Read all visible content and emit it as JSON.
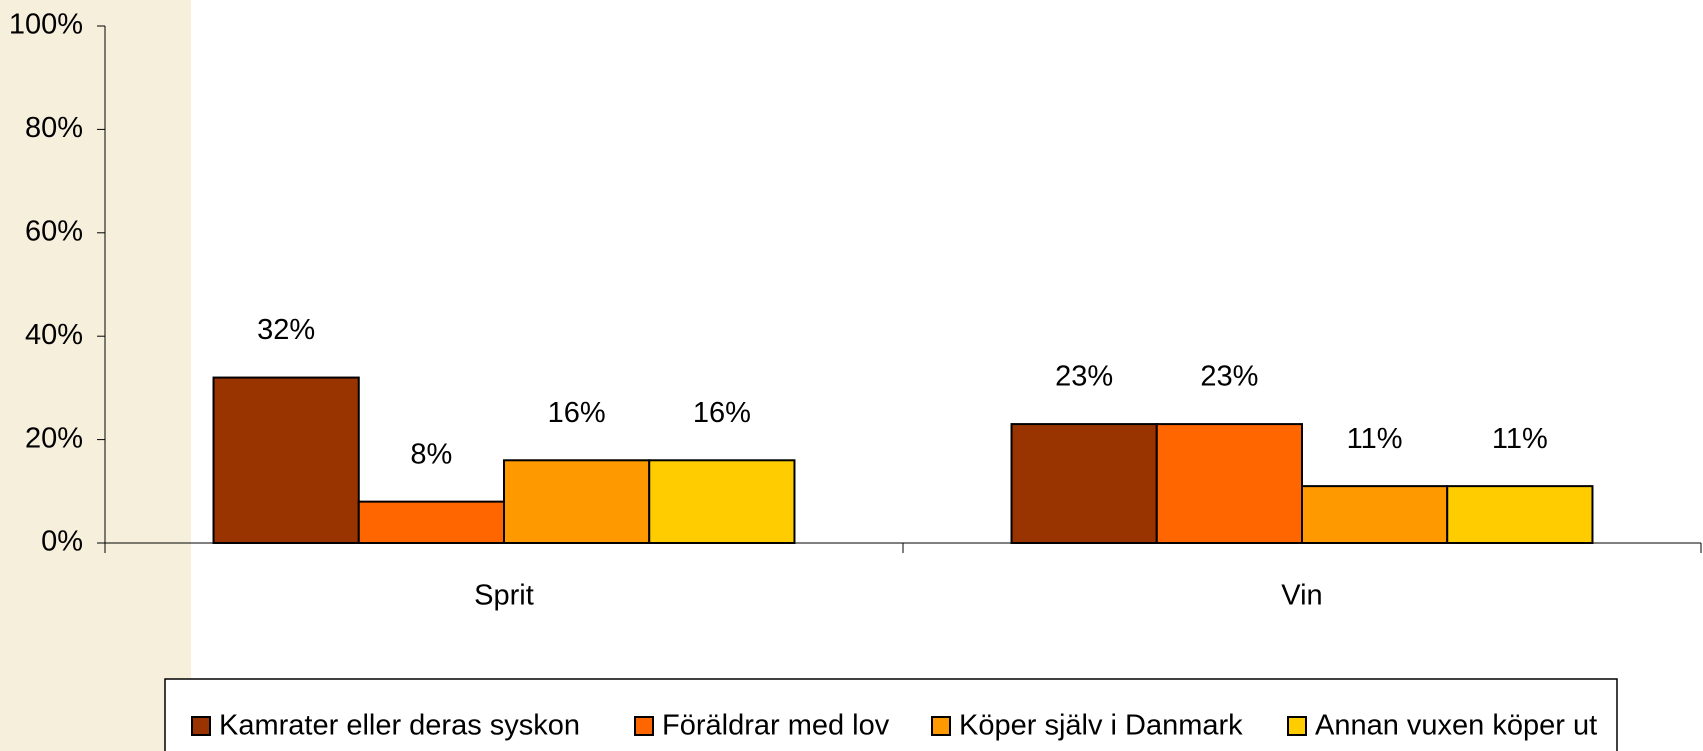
{
  "chart_data": {
    "type": "bar",
    "categories": [
      "Sprit",
      "Vin"
    ],
    "series": [
      {
        "name": "Kamrater eller deras syskon",
        "color": "#993300",
        "values": [
          32,
          23
        ],
        "value_labels": [
          "32%",
          "23%"
        ]
      },
      {
        "name": "Föräldrar med lov",
        "color": "#FF6600",
        "values": [
          8,
          23
        ],
        "value_labels": [
          "8%",
          "23%"
        ]
      },
      {
        "name": "Köper själv i Danmark",
        "color": "#FF9900",
        "values": [
          16,
          11
        ],
        "value_labels": [
          "16%",
          "11%"
        ]
      },
      {
        "name": "Annan vuxen köper ut",
        "color": "#FFCC00",
        "values": [
          16,
          11
        ],
        "value_labels": [
          "16%",
          "11%"
        ]
      }
    ],
    "ylim": [
      0,
      100
    ],
    "yticks": [
      {
        "value": 0,
        "label": "0%"
      },
      {
        "value": 20,
        "label": "20%"
      },
      {
        "value": 40,
        "label": "40%"
      },
      {
        "value": 60,
        "label": "60%"
      },
      {
        "value": 80,
        "label": "80%"
      },
      {
        "value": 100,
        "label": "100%"
      }
    ],
    "legend": "bottom"
  }
}
